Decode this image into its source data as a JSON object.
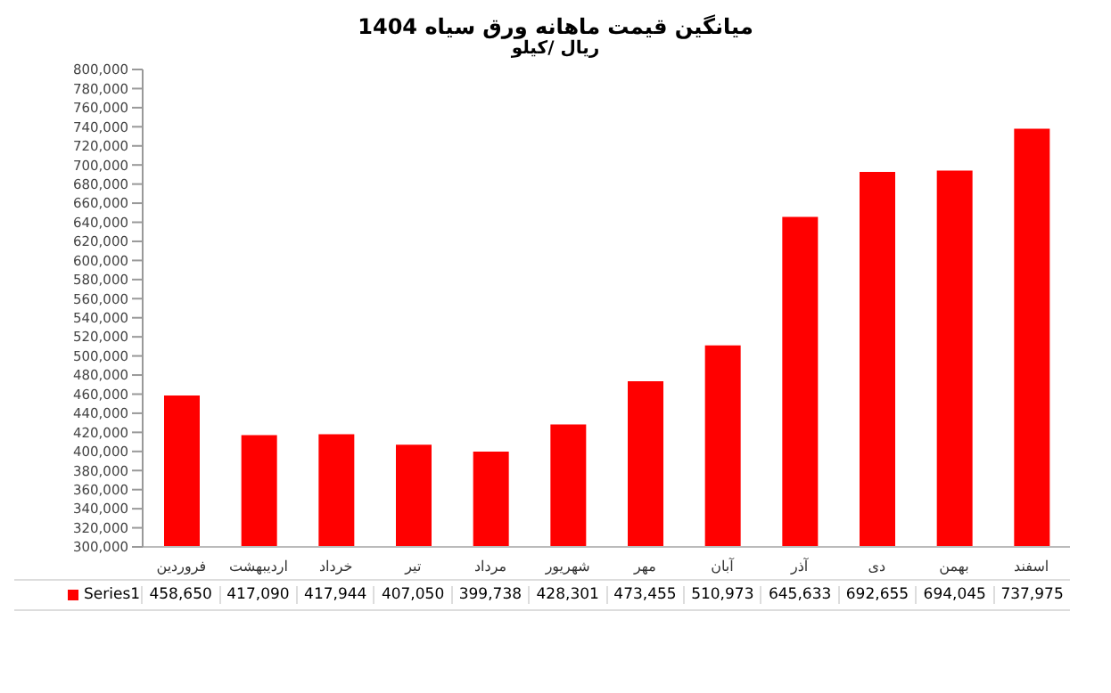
{
  "chart_data": {
    "type": "bar",
    "title": "میانگین قیمت ماهانه ورق سیاه 1404",
    "subtitle": "ریال /کیلو",
    "categories": [
      "فروردین",
      "اردیبهشت",
      "خرداد",
      "تیر",
      "مرداد",
      "شهریور",
      "مهر",
      "آبان",
      "آذر",
      "دی",
      "بهمن",
      "اسفند"
    ],
    "series": [
      {
        "name": "Series1",
        "color": "#ff0000",
        "values": [
          458650,
          417090,
          417944,
          407050,
          399738,
          428301,
          473455,
          510973,
          645633,
          692655,
          694045,
          737975
        ],
        "value_labels": [
          "458,650",
          "417,090",
          "417,944",
          "407,050",
          "399,738",
          "428,301",
          "473,455",
          "510,973",
          "645,633",
          "692,655",
          "694,045",
          "737,975"
        ]
      }
    ],
    "ylim": [
      300000,
      800000
    ],
    "yticks": [
      {
        "value": 300000,
        "label": "300,000"
      },
      {
        "value": 320000,
        "label": "320,000"
      },
      {
        "value": 340000,
        "label": "340,000"
      },
      {
        "value": 360000,
        "label": "360,000"
      },
      {
        "value": 380000,
        "label": "380,000"
      },
      {
        "value": 400000,
        "label": "400,000"
      },
      {
        "value": 420000,
        "label": "420,000"
      },
      {
        "value": 440000,
        "label": "440,000"
      },
      {
        "value": 460000,
        "label": "460,000"
      },
      {
        "value": 480000,
        "label": "480,000"
      },
      {
        "value": 500000,
        "label": "500,000"
      },
      {
        "value": 520000,
        "label": "520,000"
      },
      {
        "value": 540000,
        "label": "540,000"
      },
      {
        "value": 560000,
        "label": "560,000"
      },
      {
        "value": 580000,
        "label": "580,000"
      },
      {
        "value": 600000,
        "label": "600,000"
      },
      {
        "value": 620000,
        "label": "620,000"
      },
      {
        "value": 640000,
        "label": "640,000"
      },
      {
        "value": 660000,
        "label": "660,000"
      },
      {
        "value": 680000,
        "label": "680,000"
      },
      {
        "value": 700000,
        "label": "700,000"
      },
      {
        "value": 720000,
        "label": "720,000"
      },
      {
        "value": 740000,
        "label": "740,000"
      },
      {
        "value": 760000,
        "label": "760,000"
      },
      {
        "value": 780000,
        "label": "780,000"
      },
      {
        "value": 800000,
        "label": "800,000"
      }
    ],
    "legend": "bottom",
    "grid": false
  }
}
